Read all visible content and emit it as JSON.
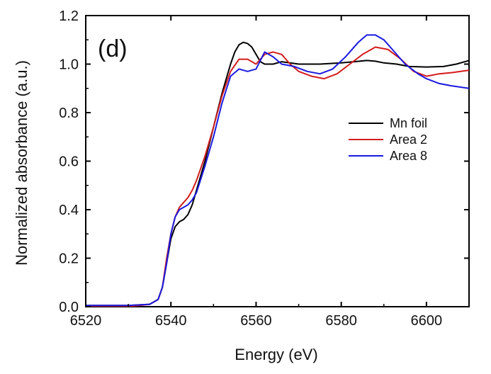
{
  "chart_data": {
    "type": "line",
    "title": "",
    "panel_label": "(d)",
    "xlabel": "Energy (eV)",
    "ylabel": "Normalized absorbance (a.u.)",
    "xlim": [
      6520,
      6610
    ],
    "ylim": [
      0.0,
      1.2
    ],
    "xticks": [
      6520,
      6540,
      6560,
      6580,
      6600
    ],
    "xtick_labels": [
      "6520",
      "6540",
      "6560",
      "6580",
      "6600"
    ],
    "yticks": [
      0.0,
      0.2,
      0.4,
      0.6,
      0.8,
      1.0,
      1.2
    ],
    "ytick_labels": [
      "0.0",
      "0.2",
      "0.4",
      "0.6",
      "0.8",
      "1.0",
      "1.2"
    ],
    "grid": false,
    "legend_position": "right",
    "series": [
      {
        "name": "Mn foil",
        "color": "#000000",
        "x": [
          6520,
          6530,
          6535,
          6537,
          6538,
          6539,
          6540,
          6541,
          6542,
          6543,
          6544,
          6545,
          6546,
          6548,
          6550,
          6552,
          6554,
          6555,
          6556,
          6557,
          6558,
          6559,
          6560,
          6561,
          6562,
          6564,
          6566,
          6570,
          6575,
          6580,
          6583,
          6586,
          6588,
          6590,
          6593,
          6596,
          6600,
          6604,
          6607,
          6610
        ],
        "y": [
          0.005,
          0.005,
          0.01,
          0.03,
          0.08,
          0.18,
          0.28,
          0.33,
          0.35,
          0.36,
          0.38,
          0.42,
          0.48,
          0.6,
          0.74,
          0.88,
          1.0,
          1.05,
          1.08,
          1.09,
          1.085,
          1.07,
          1.04,
          1.01,
          1.0,
          1.0,
          1.01,
          1.0,
          1.0,
          1.005,
          1.01,
          1.015,
          1.012,
          1.005,
          1.0,
          0.99,
          0.988,
          0.99,
          1.0,
          1.015
        ]
      },
      {
        "name": "Area 2",
        "color": "#d41c1c",
        "x": [
          6520,
          6530,
          6535,
          6537,
          6538,
          6539,
          6540,
          6541,
          6542,
          6543,
          6544,
          6545,
          6546,
          6548,
          6550,
          6552,
          6554,
          6556,
          6558,
          6560,
          6562,
          6564,
          6566,
          6568,
          6570,
          6573,
          6576,
          6579,
          6582,
          6585,
          6588,
          6591,
          6594,
          6597,
          6600,
          6603,
          6606,
          6610
        ],
        "y": [
          0.0,
          0.0,
          0.01,
          0.03,
          0.08,
          0.2,
          0.3,
          0.37,
          0.41,
          0.43,
          0.45,
          0.48,
          0.52,
          0.62,
          0.74,
          0.87,
          0.97,
          1.02,
          1.02,
          1.0,
          1.04,
          1.05,
          1.04,
          1.0,
          0.97,
          0.95,
          0.94,
          0.96,
          1.0,
          1.04,
          1.07,
          1.06,
          1.02,
          0.97,
          0.95,
          0.96,
          0.965,
          0.975
        ]
      },
      {
        "name": "Area 8",
        "color": "#1a1ae0",
        "x": [
          6520,
          6530,
          6535,
          6537,
          6538,
          6539,
          6540,
          6541,
          6542,
          6543,
          6544,
          6545,
          6546,
          6548,
          6550,
          6552,
          6554,
          6556,
          6558,
          6560,
          6562,
          6564,
          6566,
          6569,
          6572,
          6575,
          6578,
          6581,
          6584,
          6586,
          6588,
          6590,
          6592,
          6595,
          6598,
          6600,
          6603,
          6606,
          6610
        ],
        "y": [
          0.005,
          0.005,
          0.01,
          0.03,
          0.08,
          0.18,
          0.3,
          0.37,
          0.4,
          0.41,
          0.42,
          0.44,
          0.47,
          0.58,
          0.7,
          0.84,
          0.95,
          0.98,
          0.97,
          0.98,
          1.05,
          1.03,
          1.0,
          0.99,
          0.97,
          0.96,
          0.98,
          1.03,
          1.09,
          1.12,
          1.12,
          1.1,
          1.06,
          1.0,
          0.96,
          0.94,
          0.92,
          0.91,
          0.9
        ]
      }
    ]
  }
}
